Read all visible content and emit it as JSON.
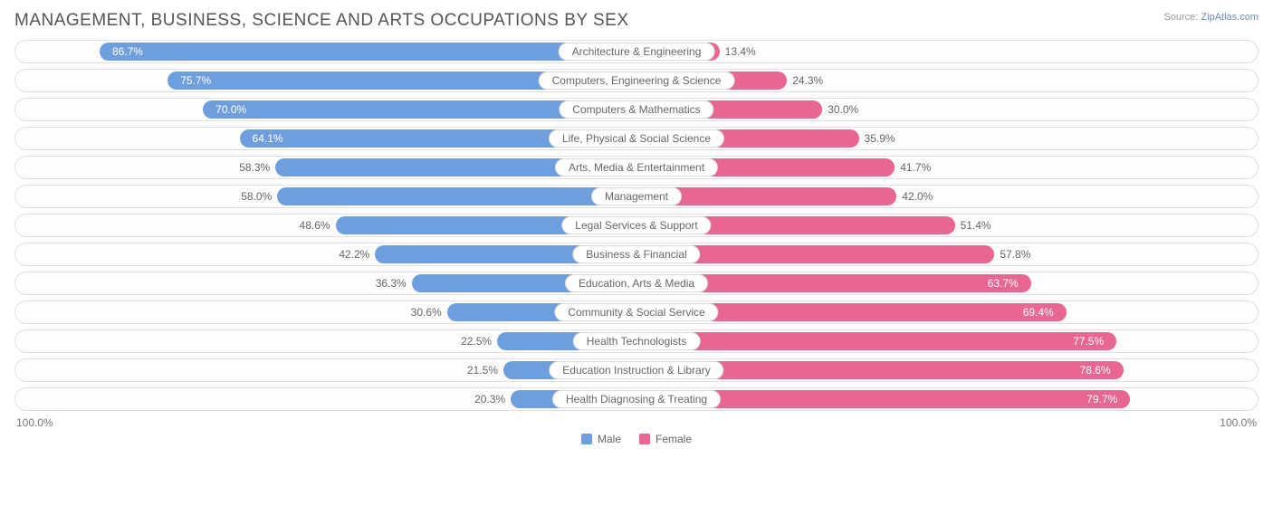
{
  "title": "MANAGEMENT, BUSINESS, SCIENCE AND ARTS OCCUPATIONS BY SEX",
  "source_label": "Source:",
  "source_name": "ZipAtlas.com",
  "axis": {
    "left": "100.0%",
    "right": "100.0%"
  },
  "legend": {
    "male": {
      "label": "Male",
      "color": "#6f9ede"
    },
    "female": {
      "label": "Female",
      "color": "#e96694"
    }
  },
  "colors": {
    "male_bar": "#6f9ede",
    "female_bar": "#e96694",
    "text": "#666666",
    "text_inside": "#ffffff",
    "row_border": "#e0e0e0",
    "background": "#ffffff"
  },
  "inside_threshold": 60,
  "rows": [
    {
      "category": "Architecture & Engineering",
      "male": 86.7,
      "female": 13.4,
      "male_label": "86.7%",
      "female_label": "13.4%"
    },
    {
      "category": "Computers, Engineering & Science",
      "male": 75.7,
      "female": 24.3,
      "male_label": "75.7%",
      "female_label": "24.3%"
    },
    {
      "category": "Computers & Mathematics",
      "male": 70.0,
      "female": 30.0,
      "male_label": "70.0%",
      "female_label": "30.0%"
    },
    {
      "category": "Life, Physical & Social Science",
      "male": 64.1,
      "female": 35.9,
      "male_label": "64.1%",
      "female_label": "35.9%"
    },
    {
      "category": "Arts, Media & Entertainment",
      "male": 58.3,
      "female": 41.7,
      "male_label": "58.3%",
      "female_label": "41.7%"
    },
    {
      "category": "Management",
      "male": 58.0,
      "female": 42.0,
      "male_label": "58.0%",
      "female_label": "42.0%"
    },
    {
      "category": "Legal Services & Support",
      "male": 48.6,
      "female": 51.4,
      "male_label": "48.6%",
      "female_label": "51.4%"
    },
    {
      "category": "Business & Financial",
      "male": 42.2,
      "female": 57.8,
      "male_label": "42.2%",
      "female_label": "57.8%"
    },
    {
      "category": "Education, Arts & Media",
      "male": 36.3,
      "female": 63.7,
      "male_label": "36.3%",
      "female_label": "63.7%"
    },
    {
      "category": "Community & Social Service",
      "male": 30.6,
      "female": 69.4,
      "male_label": "30.6%",
      "female_label": "69.4%"
    },
    {
      "category": "Health Technologists",
      "male": 22.5,
      "female": 77.5,
      "male_label": "22.5%",
      "female_label": "77.5%"
    },
    {
      "category": "Education Instruction & Library",
      "male": 21.5,
      "female": 78.6,
      "male_label": "21.5%",
      "female_label": "78.6%"
    },
    {
      "category": "Health Diagnosing & Treating",
      "male": 20.3,
      "female": 79.7,
      "male_label": "20.3%",
      "female_label": "79.7%"
    }
  ]
}
